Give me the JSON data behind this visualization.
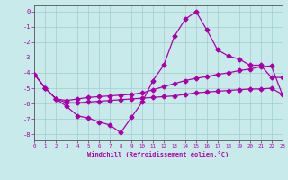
{
  "xlabel": "Windchill (Refroidissement éolien,°C)",
  "bg_color": "#c8eaea",
  "grid_color": "#9ecece",
  "line_color": "#aa00aa",
  "x": [
    0,
    1,
    2,
    3,
    4,
    5,
    6,
    7,
    8,
    9,
    10,
    11,
    12,
    13,
    14,
    15,
    16,
    17,
    18,
    19,
    20,
    21,
    22,
    23
  ],
  "y_main": [
    -4.1,
    -5.0,
    -5.7,
    -6.2,
    -6.8,
    -6.95,
    -7.2,
    -7.4,
    -7.9,
    -6.9,
    -5.9,
    -4.5,
    -3.5,
    -1.6,
    -0.5,
    0.0,
    -1.2,
    -2.5,
    -2.9,
    -3.1,
    -3.5,
    -3.5,
    -4.3,
    -4.3
  ],
  "y_line2": [
    -4.1,
    -5.0,
    -5.7,
    -5.8,
    -5.7,
    -5.6,
    -5.55,
    -5.5,
    -5.45,
    -5.4,
    -5.3,
    -5.1,
    -4.9,
    -4.7,
    -4.5,
    -4.35,
    -4.25,
    -4.1,
    -4.0,
    -3.85,
    -3.75,
    -3.6,
    -3.55,
    -5.4
  ],
  "y_line3": [
    -4.1,
    -5.0,
    -5.7,
    -5.95,
    -5.95,
    -5.9,
    -5.85,
    -5.8,
    -5.75,
    -5.7,
    -5.65,
    -5.6,
    -5.55,
    -5.5,
    -5.4,
    -5.3,
    -5.25,
    -5.2,
    -5.15,
    -5.1,
    -5.05,
    -5.05,
    -5.0,
    -5.4
  ],
  "ylim": [
    -8.4,
    0.4
  ],
  "xlim": [
    0,
    23
  ],
  "yticks": [
    0,
    -1,
    -2,
    -3,
    -4,
    -5,
    -6,
    -7,
    -8
  ],
  "xticks": [
    0,
    1,
    2,
    3,
    4,
    5,
    6,
    7,
    8,
    9,
    10,
    11,
    12,
    13,
    14,
    15,
    16,
    17,
    18,
    19,
    20,
    21,
    22,
    23
  ]
}
